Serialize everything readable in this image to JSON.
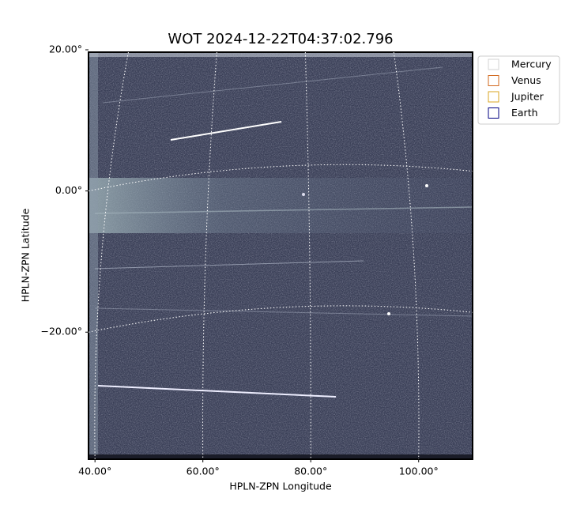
{
  "chart_data": {
    "type": "image",
    "title": "WOT 2024-12-22T04:37:02.796",
    "xlabel": "HPLN-ZPN Longitude",
    "ylabel": "HPLN-ZPN Latitude",
    "xlim": [
      38.8,
      110
    ],
    "ylim": [
      -38,
      20
    ],
    "xticks": [
      {
        "value": 40,
        "label": "40.00°"
      },
      {
        "value": 60,
        "label": "60.00°"
      },
      {
        "value": 80,
        "label": "80.00°"
      },
      {
        "value": 100,
        "label": "100.00°"
      }
    ],
    "yticks": [
      {
        "value": 20,
        "label": "20.00°"
      },
      {
        "value": 0,
        "label": "0.00°"
      },
      {
        "value": -20,
        "label": "−20.00°"
      }
    ],
    "grid": true,
    "legend": "upper right",
    "series": [
      {
        "name": "Mercury",
        "color": "#d3d3d3"
      },
      {
        "name": "Venus",
        "color": "#d2691e"
      },
      {
        "name": "Jupiter",
        "color": "#daa520"
      },
      {
        "name": "Earth",
        "color": "#000080"
      }
    ]
  }
}
